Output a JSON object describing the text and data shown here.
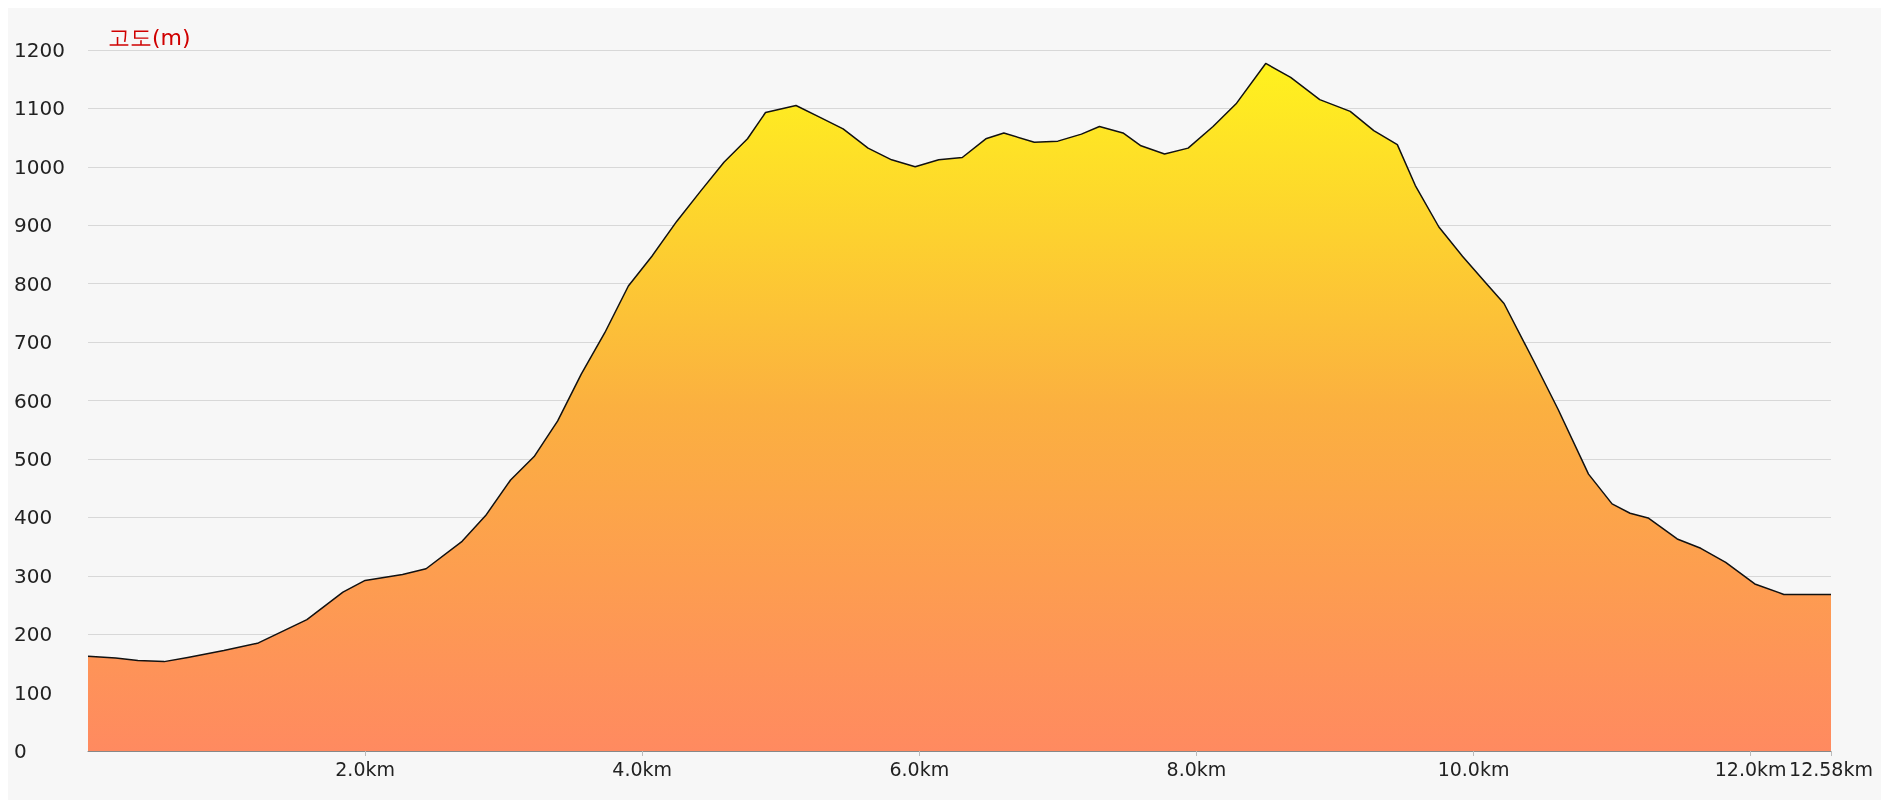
{
  "chart_data": {
    "type": "area",
    "ylabel": "고도(m)",
    "color": "#fbb040",
    "x": [
      0,
      0.2,
      0.36,
      0.55,
      0.72,
      0.98,
      1.23,
      1.58,
      1.84,
      2.0,
      2.27,
      2.44,
      2.7,
      2.87,
      3.05,
      3.22,
      3.39,
      3.56,
      3.73,
      3.9,
      4.07,
      4.25,
      4.42,
      4.59,
      4.76,
      4.89,
      5.11,
      5.28,
      5.45,
      5.63,
      5.8,
      5.97,
      6.14,
      6.31,
      6.48,
      6.61,
      6.83,
      7.0,
      7.17,
      7.3,
      7.47,
      7.6,
      7.77,
      7.94,
      8.12,
      8.29,
      8.5,
      8.68,
      8.89,
      9.11,
      9.28,
      9.45,
      9.58,
      9.75,
      9.92,
      10.1,
      10.22,
      10.44,
      10.61,
      10.83,
      11.0,
      11.13,
      11.26,
      11.47,
      11.64,
      11.82,
      12.03,
      12.24,
      12.58
    ],
    "values": [
      162,
      159,
      155,
      153,
      160,
      172,
      185,
      225,
      272,
      292,
      302,
      312,
      359,
      403,
      464,
      504,
      565,
      645,
      716,
      796,
      847,
      907,
      958,
      1008,
      1048,
      1093,
      1105,
      1085,
      1065,
      1032,
      1012,
      1000,
      1012,
      1016,
      1048,
      1058,
      1042,
      1044,
      1056,
      1069,
      1058,
      1036,
      1022,
      1032,
      1069,
      1109,
      1177,
      1153,
      1115,
      1095,
      1062,
      1038,
      968,
      897,
      847,
      798,
      766,
      665,
      585,
      474,
      423,
      407,
      399,
      363,
      347,
      323,
      286,
      268,
      268
    ],
    "xlim": [
      0,
      12.58
    ],
    "xticks": [
      {
        "value": 2,
        "label": "2.0km"
      },
      {
        "value": 4,
        "label": "4.0km"
      },
      {
        "value": 6,
        "label": "6.0km"
      },
      {
        "value": 8,
        "label": "8.0km"
      },
      {
        "value": 10,
        "label": "10.0km"
      },
      {
        "value": 12,
        "label": "12.0km"
      },
      {
        "value": 12.58,
        "label": "12.58km"
      }
    ],
    "ylim": [
      0,
      1200
    ],
    "yticks": [
      0,
      100,
      200,
      300,
      400,
      500,
      600,
      700,
      800,
      900,
      1000,
      1100,
      1200
    ],
    "grid": "y",
    "marker": "none",
    "line_style": "solid"
  }
}
